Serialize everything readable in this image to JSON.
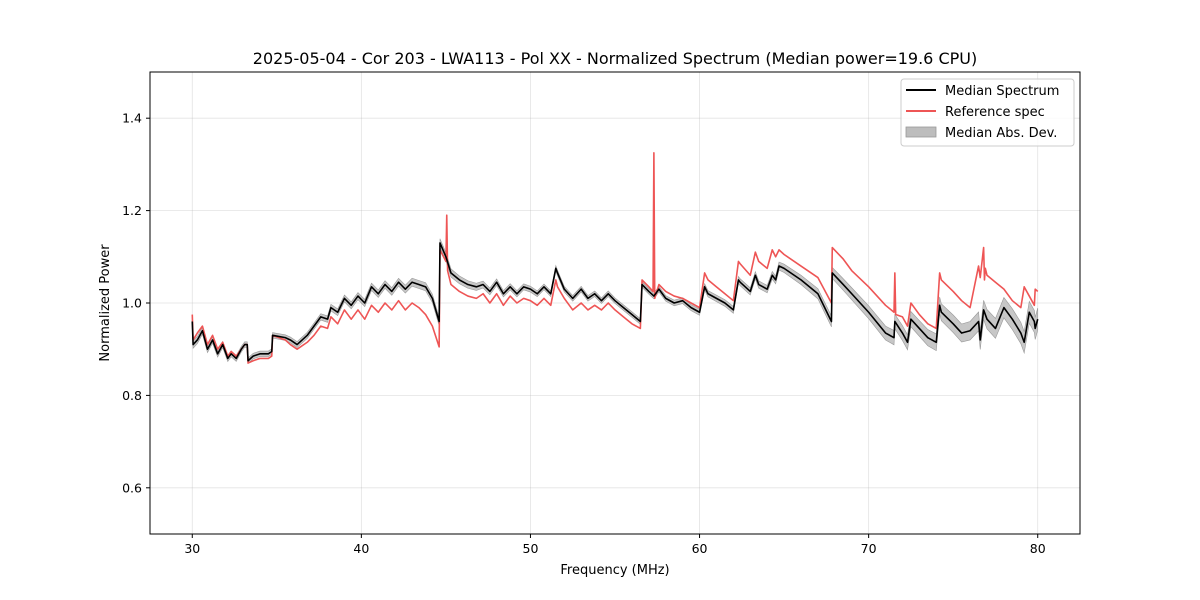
{
  "chart_data": {
    "type": "line",
    "title": "2025-05-04 - Cor 203 - LWA113 - Pol XX - Normalized Spectrum (Median power=19.6 CPU)",
    "xlabel": "Frequency (MHz)",
    "ylabel": "Normalized Power",
    "xlim": [
      27.5,
      82.5
    ],
    "ylim": [
      0.5,
      1.5
    ],
    "xticks": [
      30,
      40,
      50,
      60,
      70,
      80
    ],
    "yticks": [
      0.6,
      0.8,
      1.0,
      1.2,
      1.4
    ],
    "xtick_labels": [
      "30",
      "40",
      "50",
      "60",
      "70",
      "80"
    ],
    "ytick_labels": [
      "0.6",
      "0.8",
      "1.0",
      "1.2",
      "1.4"
    ],
    "grid": true,
    "legend_position": "top-right",
    "legend": [
      "Median Spectrum",
      "Reference spec",
      "Median Abs. Dev."
    ],
    "colors": {
      "median": "#000000",
      "reference": "#ee5555",
      "mad_fill": "#bdbdbd",
      "mad_edge": "#999999"
    },
    "series": [
      {
        "name": "Median Spectrum",
        "x": [
          30.0,
          30.05,
          30.3,
          30.6,
          30.9,
          31.2,
          31.5,
          31.8,
          32.1,
          32.3,
          32.6,
          32.9,
          33.1,
          33.25,
          33.3,
          33.6,
          34.0,
          34.5,
          34.7,
          34.75,
          35.5,
          35.8,
          36.2,
          36.8,
          37.2,
          37.6,
          38.0,
          38.2,
          38.6,
          39.0,
          39.4,
          39.8,
          40.2,
          40.6,
          41.0,
          41.4,
          41.8,
          42.2,
          42.6,
          43.0,
          43.4,
          43.8,
          44.2,
          44.6,
          44.65,
          45.0,
          45.3,
          45.8,
          46.3,
          46.8,
          47.2,
          47.6,
          48.0,
          48.4,
          48.8,
          49.2,
          49.6,
          50.0,
          50.4,
          50.8,
          51.2,
          51.5,
          51.6,
          52.0,
          52.5,
          53.0,
          53.4,
          53.8,
          54.2,
          54.6,
          55.0,
          55.5,
          56.0,
          56.5,
          56.6,
          57.0,
          57.3,
          57.6,
          58.0,
          58.5,
          59.0,
          59.5,
          60.0,
          60.3,
          60.5,
          61.0,
          61.5,
          62.0,
          62.3,
          62.4,
          63.0,
          63.3,
          63.5,
          64.0,
          64.3,
          64.5,
          64.7,
          65.0,
          66.0,
          67.0,
          67.8,
          67.85,
          68.5,
          69.0,
          70.0,
          71.0,
          71.5,
          71.55,
          72.0,
          72.3,
          72.5,
          73.0,
          73.5,
          74.0,
          74.2,
          74.3,
          75.0,
          75.5,
          76.0,
          76.5,
          76.6,
          76.8,
          77.0,
          77.5,
          78.0,
          78.5,
          79.0,
          79.2,
          79.5,
          79.8,
          79.85,
          80.0
        ],
        "values": [
          0.96,
          0.91,
          0.92,
          0.94,
          0.9,
          0.92,
          0.89,
          0.91,
          0.88,
          0.89,
          0.88,
          0.9,
          0.91,
          0.91,
          0.875,
          0.885,
          0.89,
          0.89,
          0.895,
          0.93,
          0.925,
          0.92,
          0.91,
          0.93,
          0.95,
          0.97,
          0.965,
          0.99,
          0.98,
          1.01,
          0.995,
          1.015,
          1.0,
          1.035,
          1.02,
          1.04,
          1.025,
          1.045,
          1.03,
          1.045,
          1.04,
          1.035,
          1.01,
          0.96,
          1.13,
          1.1,
          1.065,
          1.05,
          1.04,
          1.035,
          1.04,
          1.025,
          1.045,
          1.02,
          1.035,
          1.02,
          1.035,
          1.03,
          1.02,
          1.035,
          1.02,
          1.075,
          1.065,
          1.03,
          1.01,
          1.03,
          1.01,
          1.02,
          1.005,
          1.02,
          1.005,
          0.99,
          0.975,
          0.96,
          1.04,
          1.025,
          1.015,
          1.03,
          1.01,
          1.0,
          1.005,
          0.99,
          0.98,
          1.035,
          1.02,
          1.01,
          1.0,
          0.985,
          1.05,
          1.045,
          1.025,
          1.06,
          1.04,
          1.03,
          1.06,
          1.05,
          1.08,
          1.075,
          1.05,
          1.02,
          0.96,
          1.065,
          1.04,
          1.02,
          0.98,
          0.935,
          0.925,
          0.96,
          0.935,
          0.915,
          0.965,
          0.945,
          0.925,
          0.915,
          0.995,
          0.98,
          0.955,
          0.935,
          0.94,
          0.96,
          0.92,
          0.985,
          0.965,
          0.945,
          0.99,
          0.965,
          0.935,
          0.915,
          0.98,
          0.96,
          0.945,
          0.965
        ]
      },
      {
        "name": "Reference spec",
        "x": [
          30.0,
          30.05,
          30.3,
          30.6,
          30.9,
          31.2,
          31.5,
          31.8,
          32.1,
          32.3,
          32.6,
          32.9,
          33.1,
          33.25,
          33.3,
          33.6,
          34.0,
          34.5,
          34.7,
          34.75,
          35.5,
          35.8,
          36.2,
          36.8,
          37.2,
          37.6,
          38.0,
          38.2,
          38.6,
          39.0,
          39.4,
          39.8,
          40.2,
          40.6,
          41.0,
          41.4,
          41.8,
          42.2,
          42.6,
          43.0,
          43.4,
          43.8,
          44.2,
          44.6,
          44.65,
          45.0,
          45.05,
          45.1,
          45.3,
          45.8,
          46.3,
          46.8,
          47.2,
          47.6,
          48.0,
          48.4,
          48.8,
          49.2,
          49.6,
          50.0,
          50.4,
          50.8,
          51.2,
          51.5,
          51.6,
          52.0,
          52.5,
          53.0,
          53.4,
          53.8,
          54.2,
          54.6,
          55.0,
          55.5,
          56.0,
          56.5,
          56.6,
          57.0,
          57.25,
          57.3,
          57.35,
          57.6,
          58.0,
          58.5,
          59.0,
          59.5,
          60.0,
          60.3,
          60.5,
          61.0,
          61.5,
          62.0,
          62.3,
          62.4,
          63.0,
          63.3,
          63.5,
          64.0,
          64.3,
          64.5,
          64.7,
          65.0,
          66.0,
          67.0,
          67.8,
          67.85,
          68.5,
          69.0,
          70.0,
          71.0,
          71.5,
          71.55,
          71.6,
          72.0,
          72.3,
          72.5,
          73.0,
          73.5,
          74.0,
          74.2,
          74.3,
          75.0,
          75.5,
          76.0,
          76.5,
          76.6,
          76.8,
          76.85,
          76.9,
          77.0,
          77.5,
          78.0,
          78.5,
          79.0,
          79.2,
          79.5,
          79.8,
          79.85,
          80.0
        ],
        "values": [
          0.975,
          0.92,
          0.935,
          0.95,
          0.91,
          0.93,
          0.9,
          0.915,
          0.885,
          0.895,
          0.885,
          0.9,
          0.91,
          0.91,
          0.87,
          0.875,
          0.88,
          0.88,
          0.885,
          0.93,
          0.92,
          0.91,
          0.9,
          0.915,
          0.93,
          0.95,
          0.945,
          0.97,
          0.955,
          0.985,
          0.965,
          0.985,
          0.965,
          0.995,
          0.98,
          1.0,
          0.985,
          1.005,
          0.985,
          1.0,
          0.99,
          0.975,
          0.95,
          0.905,
          1.115,
          1.09,
          1.19,
          1.07,
          1.04,
          1.025,
          1.015,
          1.01,
          1.02,
          1.0,
          1.02,
          0.995,
          1.015,
          1.0,
          1.01,
          1.005,
          0.995,
          1.01,
          0.995,
          1.05,
          1.035,
          1.01,
          0.985,
          1.0,
          0.985,
          0.995,
          0.985,
          1.0,
          0.985,
          0.97,
          0.955,
          0.945,
          1.05,
          1.035,
          1.025,
          1.325,
          1.01,
          1.04,
          1.025,
          1.015,
          1.01,
          1.0,
          0.99,
          1.065,
          1.05,
          1.035,
          1.02,
          1.005,
          1.09,
          1.085,
          1.06,
          1.11,
          1.09,
          1.075,
          1.115,
          1.1,
          1.115,
          1.105,
          1.08,
          1.055,
          1.0,
          1.12,
          1.095,
          1.07,
          1.035,
          0.995,
          0.98,
          1.065,
          0.975,
          0.97,
          0.95,
          1.0,
          0.975,
          0.955,
          0.945,
          1.065,
          1.05,
          1.025,
          1.005,
          0.99,
          1.08,
          1.055,
          1.12,
          1.05,
          1.075,
          1.06,
          1.045,
          1.03,
          1.005,
          0.99,
          1.035,
          1.015,
          0.995,
          1.03,
          1.025
        ]
      }
    ],
    "mad_band": {
      "name": "Median Abs. Dev.",
      "x": [
        30.0,
        33.0,
        35.0,
        38.0,
        41.0,
        44.6,
        45.0,
        48.0,
        51.0,
        55.0,
        58.0,
        61.0,
        64.0,
        66.0,
        68.0,
        70.0,
        72.0,
        74.0,
        76.0,
        78.0,
        80.0
      ],
      "halfwidth": [
        0.008,
        0.006,
        0.006,
        0.007,
        0.008,
        0.009,
        0.009,
        0.007,
        0.006,
        0.006,
        0.006,
        0.007,
        0.008,
        0.01,
        0.012,
        0.014,
        0.016,
        0.018,
        0.02,
        0.022,
        0.024
      ]
    }
  }
}
